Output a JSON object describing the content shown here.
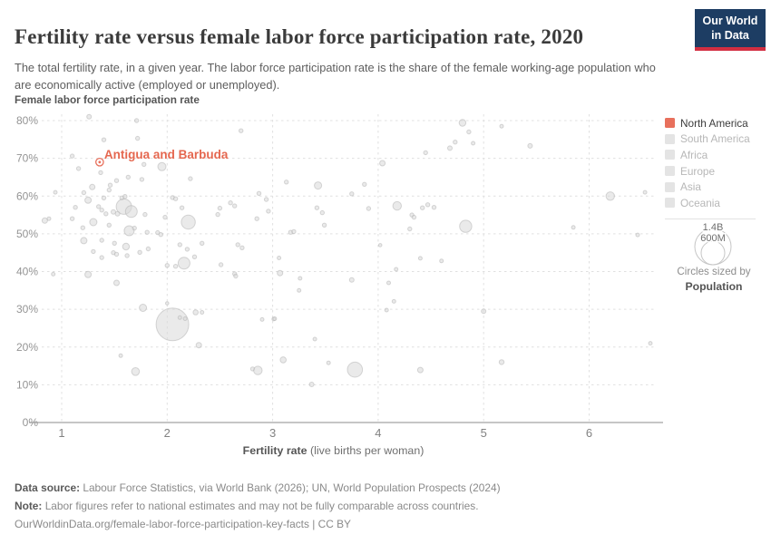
{
  "header": {
    "title": "Fertility rate versus female labor force participation rate, 2020",
    "subtitle": "The total fertility rate, in a given year. The labor force participation rate is the share of the female working-age population who are economically active (employed or unemployed).",
    "logo_line1": "Our World",
    "logo_line2": "in Data"
  },
  "colors": {
    "highlight": "#e8705c",
    "highlight_text": "#e5674f",
    "inactive_swatch": "#e4e4e4",
    "point_fill": "#d8d8d8",
    "point_stroke": "#b0b0b0",
    "grid": "#e0e0e0",
    "axis_line": "#b3b3b3",
    "logo_bg": "#1d3d63",
    "logo_accent": "#d22e41"
  },
  "chart_data": {
    "type": "scatter",
    "title": "Fertility rate versus female labor force participation rate, 2020",
    "xlabel_bold": "Fertility rate",
    "xlabel_rest": " (live births per woman)",
    "ylabel": "Female labor force participation rate",
    "x_ticks": [
      1,
      2,
      3,
      4,
      5,
      6
    ],
    "y_ticks": [
      0,
      10,
      20,
      30,
      40,
      50,
      60,
      70,
      80
    ],
    "y_tick_suffix": "%",
    "xlim": [
      0.8,
      6.78
    ],
    "ylim": [
      0,
      80
    ],
    "grid": true,
    "note": "points are [fertility_rate, participation_pct, bubble_radius_px]; radius encodes population",
    "highlight": {
      "label": "Antigua and Barbuda",
      "x": 1.36,
      "y": 69
    },
    "series": [
      {
        "name": "Countries",
        "points": [
          [
            0.84,
            53.5,
            3
          ],
          [
            0.88,
            54,
            2
          ],
          [
            0.92,
            39.3,
            2
          ],
          [
            0.94,
            61,
            2
          ],
          [
            1.1,
            54,
            2.2
          ],
          [
            1.1,
            70.6,
            2.2
          ],
          [
            1.13,
            57,
            2.2
          ],
          [
            1.16,
            67.3,
            2.2
          ],
          [
            1.2,
            51.6,
            2.2
          ],
          [
            1.21,
            60.9,
            2.2
          ],
          [
            1.21,
            48.2,
            3.5
          ],
          [
            1.25,
            58.9,
            3.5
          ],
          [
            1.25,
            39.2,
            3.5
          ],
          [
            1.26,
            81,
            2.5
          ],
          [
            1.29,
            62.4,
            3
          ],
          [
            1.3,
            53.1,
            4
          ],
          [
            1.3,
            45.3,
            2.2
          ],
          [
            1.35,
            57.2,
            2.2
          ],
          [
            1.37,
            66.2,
            2.2
          ],
          [
            1.38,
            56.3,
            2.2
          ],
          [
            1.38,
            48.3,
            2.2
          ],
          [
            1.38,
            43.7,
            2.2
          ],
          [
            1.4,
            74.9,
            2.2
          ],
          [
            1.4,
            59.5,
            2.2
          ],
          [
            1.42,
            55.3,
            2.2
          ],
          [
            1.45,
            61.6,
            2.2
          ],
          [
            1.45,
            52.3,
            2.2
          ],
          [
            1.46,
            62.9,
            2.2
          ],
          [
            1.49,
            55.8,
            2.5
          ],
          [
            1.49,
            45,
            2.2
          ],
          [
            1.5,
            47.5,
            2.2
          ],
          [
            1.52,
            64.1,
            2.2
          ],
          [
            1.52,
            44.6,
            2.2
          ],
          [
            1.52,
            37,
            3
          ],
          [
            1.53,
            55.3,
            2.5
          ],
          [
            1.56,
            17.7,
            2
          ],
          [
            1.57,
            59.5,
            2.2
          ],
          [
            1.59,
            57.2,
            8.5
          ],
          [
            1.6,
            59.9,
            2.2
          ],
          [
            1.61,
            46.6,
            3.7
          ],
          [
            1.62,
            44.2,
            2.2
          ],
          [
            1.63,
            65,
            2.2
          ],
          [
            1.64,
            50.8,
            5.5
          ],
          [
            1.66,
            55.9,
            6.5
          ],
          [
            1.69,
            51.5,
            2.2
          ],
          [
            1.7,
            13.5,
            4.3
          ],
          [
            1.71,
            80,
            2.2
          ],
          [
            1.72,
            75.3,
            2.2
          ],
          [
            1.74,
            45.1,
            2.2
          ],
          [
            1.76,
            64.4,
            2.2
          ],
          [
            1.77,
            30.4,
            4
          ],
          [
            1.78,
            68.4,
            2.2
          ],
          [
            1.79,
            55.1,
            2.2
          ],
          [
            1.81,
            50.4,
            2.2
          ],
          [
            1.82,
            46,
            2.2
          ],
          [
            1.91,
            50.3,
            2.2
          ],
          [
            1.94,
            49.8,
            2.2
          ],
          [
            1.95,
            67.8,
            4.5
          ],
          [
            1.98,
            54.4,
            2.2
          ],
          [
            2,
            41.6,
            2.2
          ],
          [
            2,
            31.6,
            1.8
          ],
          [
            2.05,
            59.6,
            2.2
          ],
          [
            2.05,
            26,
            18
          ],
          [
            2.08,
            59.3,
            2.2
          ],
          [
            2.08,
            41.4,
            2.2
          ],
          [
            2.12,
            47.1,
            2.2
          ],
          [
            2.12,
            27.8,
            2
          ],
          [
            2.14,
            56.9,
            2.2
          ],
          [
            2.16,
            42.2,
            6.5
          ],
          [
            2.17,
            27.5,
            2
          ],
          [
            2.19,
            45.9,
            2.2
          ],
          [
            2.2,
            53.1,
            7.7
          ],
          [
            2.22,
            64.6,
            2.2
          ],
          [
            2.26,
            43.9,
            2.2
          ],
          [
            2.27,
            29.2,
            2.8
          ],
          [
            2.3,
            20.5,
            3
          ],
          [
            2.33,
            47.5,
            2.2
          ],
          [
            2.33,
            29.2,
            2
          ],
          [
            2.48,
            55.1,
            2.2
          ],
          [
            2.5,
            56.8,
            2.2
          ],
          [
            2.51,
            41.8,
            2.2
          ],
          [
            2.6,
            58.2,
            2.2
          ],
          [
            2.64,
            57.4,
            2.2
          ],
          [
            2.64,
            39.4,
            2.2
          ],
          [
            2.65,
            38.8,
            2.2
          ],
          [
            2.67,
            47.1,
            2.2
          ],
          [
            2.7,
            77.3,
            2.2
          ],
          [
            2.71,
            46.3,
            2.2
          ],
          [
            2.81,
            14.2,
            2.2
          ],
          [
            2.85,
            54,
            2.2
          ],
          [
            2.86,
            13.8,
            4.7
          ],
          [
            2.87,
            60.7,
            2.2
          ],
          [
            2.9,
            27.3,
            2
          ],
          [
            2.94,
            59.1,
            2.2
          ],
          [
            2.96,
            56,
            2.2
          ],
          [
            3.01,
            27.4,
            2
          ],
          [
            3.02,
            27.5,
            2
          ],
          [
            3.06,
            43.6,
            2
          ],
          [
            3.07,
            39.6,
            3
          ],
          [
            3.1,
            16.6,
            3.3
          ],
          [
            3.13,
            63.7,
            2.2
          ],
          [
            3.17,
            50.4,
            2.2
          ],
          [
            3.2,
            50.6,
            2.2
          ],
          [
            3.25,
            35,
            2
          ],
          [
            3.26,
            38.2,
            2
          ],
          [
            3.37,
            10.1,
            2.5
          ],
          [
            3.4,
            22.1,
            2
          ],
          [
            3.42,
            56.9,
            2.2
          ],
          [
            3.43,
            62.8,
            4
          ],
          [
            3.47,
            55.6,
            2.2
          ],
          [
            3.49,
            52.3,
            2.2
          ],
          [
            3.53,
            15.8,
            2
          ],
          [
            3.75,
            60.6,
            2.2
          ],
          [
            3.75,
            37.8,
            2.5
          ],
          [
            3.78,
            14,
            8.3
          ],
          [
            3.87,
            63.1,
            2.2
          ],
          [
            3.91,
            56.7,
            2.2
          ],
          [
            4.02,
            47,
            1.8
          ],
          [
            4.04,
            68.7,
            3
          ],
          [
            4.08,
            29.8,
            2
          ],
          [
            4.1,
            37,
            2
          ],
          [
            4.15,
            32.1,
            2
          ],
          [
            4.17,
            40.6,
            2
          ],
          [
            4.18,
            57.4,
            4.7
          ],
          [
            4.3,
            51.3,
            2.2
          ],
          [
            4.32,
            55,
            2.2
          ],
          [
            4.34,
            54.4,
            2.2
          ],
          [
            4.4,
            43.5,
            2
          ],
          [
            4.4,
            13.9,
            3
          ],
          [
            4.42,
            56.9,
            2.2
          ],
          [
            4.45,
            71.5,
            2.2
          ],
          [
            4.47,
            57.7,
            2.2
          ],
          [
            4.53,
            57,
            2.2
          ],
          [
            4.6,
            42.8,
            2
          ],
          [
            4.68,
            72.7,
            2.5
          ],
          [
            4.73,
            74.3,
            2.2
          ],
          [
            4.8,
            79.4,
            3.7
          ],
          [
            4.83,
            52,
            6.7
          ],
          [
            4.86,
            77,
            2.2
          ],
          [
            4.9,
            74,
            2
          ],
          [
            5,
            29.5,
            2.5
          ],
          [
            5.17,
            78.5,
            2
          ],
          [
            5.17,
            16,
            2.7
          ],
          [
            5.44,
            73.3,
            2.5
          ],
          [
            5.85,
            51.7,
            2
          ],
          [
            6.2,
            60,
            4.7
          ],
          [
            6.46,
            49.7,
            2
          ],
          [
            6.53,
            61,
            2
          ],
          [
            6.58,
            21,
            2
          ]
        ]
      }
    ]
  },
  "legend": {
    "items": [
      {
        "label": "North America",
        "active": true
      },
      {
        "label": "South America",
        "active": false
      },
      {
        "label": "Africa",
        "active": false
      },
      {
        "label": "Europe",
        "active": false
      },
      {
        "label": "Asia",
        "active": false
      },
      {
        "label": "Oceania",
        "active": false
      }
    ],
    "size_legend": {
      "big_label": "1.4B",
      "small_label": "600M",
      "caption": "Circles sized by",
      "caption_bold": "Population"
    }
  },
  "footer": {
    "source_label": "Data source:",
    "source_text": " Labour Force Statistics, via World Bank (2026); UN, World Population Prospects (2024)",
    "note_label": "Note:",
    "note_text": " Labor figures refer to national estimates and may not be fully comparable across countries.",
    "link": "OurWorldinData.org/female-labor-force-participation-key-facts | CC BY"
  }
}
